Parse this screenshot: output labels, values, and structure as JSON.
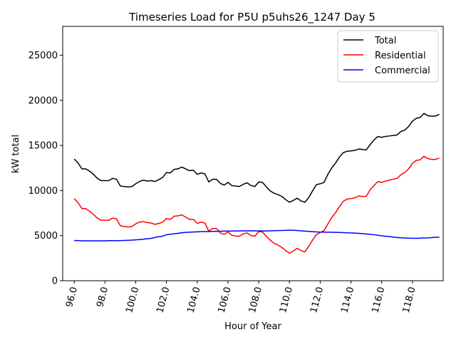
{
  "chart_data": {
    "type": "line",
    "title": "Timeseries Load for P5U p5uhs26_1247  Day 5",
    "xlabel": "Hour of Year",
    "ylabel": "kW total",
    "xlim": [
      95.25,
      120.0
    ],
    "ylim": [
      0,
      28200
    ],
    "x_ticks": [
      96,
      98,
      100,
      102,
      104,
      106,
      108,
      110,
      112,
      114,
      116,
      118
    ],
    "x_tick_labels": [
      "96.0",
      "98.0",
      "100.0",
      "102.0",
      "104.0",
      "106.0",
      "108.0",
      "110.0",
      "112.0",
      "114.0",
      "116.0",
      "118.0"
    ],
    "y_ticks": [
      0,
      5000,
      10000,
      15000,
      20000,
      25000
    ],
    "y_tick_labels": [
      "0",
      "5000",
      "10000",
      "15000",
      "20000",
      "25000"
    ],
    "legend_position": "top-right",
    "x": [
      96.0,
      96.25,
      96.5,
      96.75,
      97.0,
      97.25,
      97.5,
      97.75,
      98.0,
      98.25,
      98.5,
      98.75,
      99.0,
      99.25,
      99.5,
      99.75,
      100.0,
      100.25,
      100.5,
      100.75,
      101.0,
      101.25,
      101.5,
      101.75,
      102.0,
      102.25,
      102.5,
      102.75,
      103.0,
      103.25,
      103.5,
      103.75,
      104.0,
      104.25,
      104.5,
      104.75,
      105.0,
      105.25,
      105.5,
      105.75,
      106.0,
      106.25,
      106.5,
      106.75,
      107.0,
      107.25,
      107.5,
      107.75,
      108.0,
      108.25,
      108.5,
      108.75,
      109.0,
      109.25,
      109.5,
      109.75,
      110.0,
      110.25,
      110.5,
      110.75,
      111.0,
      111.25,
      111.5,
      111.75,
      112.0,
      112.25,
      112.5,
      112.75,
      113.0,
      113.25,
      113.5,
      113.75,
      114.0,
      114.25,
      114.5,
      114.75,
      115.0,
      115.25,
      115.5,
      115.75,
      116.0,
      116.25,
      116.5,
      116.75,
      117.0,
      117.25,
      117.5,
      117.75,
      118.0,
      118.25,
      118.5,
      118.75,
      119.0,
      119.25,
      119.5,
      119.75
    ],
    "series": [
      {
        "name": "Total",
        "color": "#000000",
        "values": [
          13500,
          13050,
          12400,
          12400,
          12150,
          11800,
          11350,
          11100,
          11100,
          11100,
          11350,
          11250,
          10500,
          10450,
          10400,
          10450,
          10750,
          11000,
          11150,
          11050,
          11100,
          11000,
          11200,
          11450,
          12000,
          11950,
          12350,
          12400,
          12600,
          12400,
          12200,
          12250,
          11800,
          11950,
          11850,
          10950,
          11250,
          11250,
          10800,
          10600,
          10900,
          10550,
          10500,
          10450,
          10700,
          10850,
          10550,
          10450,
          10950,
          10900,
          10400,
          9950,
          9700,
          9550,
          9350,
          9000,
          8700,
          8900,
          9150,
          8850,
          8700,
          9200,
          9950,
          10650,
          10750,
          10900,
          11800,
          12500,
          13050,
          13700,
          14200,
          14350,
          14400,
          14450,
          14600,
          14550,
          14500,
          15100,
          15600,
          16000,
          15900,
          16000,
          16050,
          16100,
          16150,
          16550,
          16700,
          17100,
          17700,
          18000,
          18100,
          18550,
          18300,
          18250,
          18250,
          18450
        ]
      },
      {
        "name": "Residential",
        "color": "#ff0000",
        "values": [
          9100,
          8650,
          8000,
          8000,
          7700,
          7350,
          6950,
          6700,
          6700,
          6700,
          6950,
          6850,
          6100,
          6000,
          5950,
          6000,
          6300,
          6500,
          6550,
          6450,
          6400,
          6250,
          6350,
          6500,
          6900,
          6800,
          7150,
          7200,
          7300,
          7050,
          6800,
          6800,
          6350,
          6500,
          6400,
          5500,
          5800,
          5800,
          5300,
          5150,
          5400,
          5050,
          4950,
          4950,
          5200,
          5300,
          5000,
          4950,
          5450,
          5400,
          4900,
          4500,
          4150,
          3950,
          3700,
          3350,
          3050,
          3300,
          3600,
          3350,
          3200,
          3800,
          4500,
          5100,
          5350,
          5550,
          6300,
          7000,
          7550,
          8200,
          8800,
          9050,
          9100,
          9200,
          9400,
          9350,
          9350,
          10100,
          10550,
          11000,
          10900,
          11050,
          11150,
          11250,
          11350,
          11750,
          12000,
          12400,
          13000,
          13350,
          13400,
          13800,
          13550,
          13450,
          13450,
          13600
        ]
      },
      {
        "name": "Commercial",
        "color": "#0000ff",
        "values": [
          4450,
          4450,
          4420,
          4420,
          4420,
          4420,
          4420,
          4420,
          4420,
          4440,
          4440,
          4440,
          4450,
          4460,
          4480,
          4500,
          4530,
          4560,
          4600,
          4650,
          4700,
          4800,
          4880,
          4950,
          5100,
          5150,
          5200,
          5250,
          5320,
          5360,
          5380,
          5400,
          5420,
          5440,
          5450,
          5450,
          5470,
          5480,
          5490,
          5500,
          5500,
          5510,
          5520,
          5520,
          5530,
          5530,
          5530,
          5530,
          5520,
          5520,
          5520,
          5530,
          5550,
          5560,
          5570,
          5590,
          5600,
          5600,
          5570,
          5530,
          5500,
          5470,
          5440,
          5410,
          5390,
          5380,
          5380,
          5370,
          5360,
          5350,
          5330,
          5310,
          5300,
          5280,
          5250,
          5220,
          5180,
          5140,
          5100,
          5050,
          4980,
          4940,
          4900,
          4840,
          4790,
          4760,
          4740,
          4720,
          4710,
          4700,
          4720,
          4740,
          4750,
          4780,
          4820,
          4830
        ]
      }
    ]
  }
}
